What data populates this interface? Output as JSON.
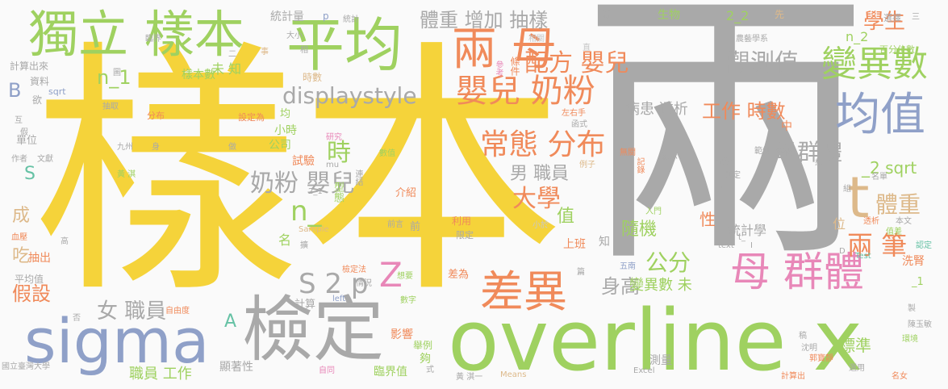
{
  "colors": {
    "yellow": "#f5d33a",
    "gray": "#a9a9a9",
    "green": "#9fd160",
    "blue": "#8fa0c8",
    "orange": "#f08a5a",
    "pink": "#e887b8",
    "tan": "#ddb98a",
    "teal": "#66c2a5",
    "lightgray": "#c7c7c7"
  },
  "words": [
    {
      "text": "樣本",
      "color": "yellow"
    },
    {
      "text": "兩",
      "color": "gray"
    },
    {
      "text": "overline x",
      "color": "green"
    },
    {
      "text": "平均",
      "color": "green"
    },
    {
      "text": "檢定",
      "color": "gray"
    },
    {
      "text": "sigma",
      "color": "blue"
    },
    {
      "text": "獨立 樣本",
      "color": "green"
    },
    {
      "text": "兩 母",
      "color": "orange"
    },
    {
      "text": "均值",
      "color": "blue"
    },
    {
      "text": "變異數",
      "color": "green"
    },
    {
      "text": "母 群體",
      "color": "pink"
    },
    {
      "text": "差異",
      "color": "orange"
    },
    {
      "text": "t",
      "color": "tan"
    },
    {
      "text": "嬰兒 奶粉",
      "color": "orange"
    },
    {
      "text": "配方 嬰兒",
      "color": "orange"
    },
    {
      "text": "觀測值",
      "color": "gray"
    },
    {
      "text": "學生",
      "color": "orange"
    },
    {
      "text": "體重 增加 抽樣",
      "color": "gray"
    },
    {
      "text": "displaystyle",
      "color": "gray"
    },
    {
      "text": "常態 分布",
      "color": "orange"
    },
    {
      "text": "奶粉 嬰兒",
      "color": "gray"
    },
    {
      "text": "母群體",
      "color": "gray"
    },
    {
      "text": "體重",
      "color": "tan"
    },
    {
      "text": "兩 筆",
      "color": "orange"
    },
    {
      "text": "工作 時數",
      "color": "orange"
    },
    {
      "text": "病患 透析",
      "color": "gray"
    },
    {
      "text": "大學",
      "color": "orange"
    },
    {
      "text": "男 職員",
      "color": "gray"
    },
    {
      "text": "n_1",
      "color": "green"
    },
    {
      "text": "n_",
      "color": "green"
    },
    {
      "text": "S 2 p",
      "color": "gray"
    },
    {
      "text": "Z",
      "color": "pink"
    },
    {
      "text": "身高",
      "color": "gray"
    },
    {
      "text": "公分",
      "color": "green"
    },
    {
      "text": "隨機",
      "color": "green"
    },
    {
      "text": "女 職員",
      "color": "gray"
    },
    {
      "text": "假設",
      "color": "orange"
    },
    {
      "text": "時",
      "color": "green"
    },
    {
      "text": "值",
      "color": "green"
    },
    {
      "text": "未 知",
      "color": "green"
    },
    {
      "text": "變異數 未",
      "color": "green"
    },
    {
      "text": "職員 工作",
      "color": "green"
    },
    {
      "text": "統計學",
      "color": "gray"
    },
    {
      "text": "標準",
      "color": "green"
    },
    {
      "text": "_2 sqrt",
      "color": "green"
    },
    {
      "text": "n_2",
      "color": "green"
    },
    {
      "text": "2_2",
      "color": "green"
    },
    {
      "text": "統計量",
      "color": "gray"
    },
    {
      "text": "生物",
      "color": "green"
    },
    {
      "text": "樣本數",
      "color": "green"
    },
    {
      "text": "上班",
      "color": "orange"
    },
    {
      "text": "A",
      "color": "teal"
    },
    {
      "text": "B",
      "color": "blue"
    },
    {
      "text": "S",
      "color": "teal"
    },
    {
      "text": "成",
      "color": "tan"
    },
    {
      "text": "吃",
      "color": "tan"
    },
    {
      "text": "位",
      "color": "tan"
    },
    {
      "text": "性",
      "color": "orange"
    },
    {
      "text": "知",
      "color": "gray"
    },
    {
      "text": "小時",
      "color": "green"
    },
    {
      "text": "公司",
      "color": "green"
    },
    {
      "text": "試驗",
      "color": "orange"
    },
    {
      "text": "型態",
      "color": "green"
    },
    {
      "text": "影響",
      "color": "orange"
    },
    {
      "text": "舉例",
      "color": "green"
    },
    {
      "text": "夠",
      "color": "green"
    },
    {
      "text": "臨界值",
      "color": "green"
    },
    {
      "text": "介紹",
      "color": "orange"
    },
    {
      "text": "差為",
      "color": "orange"
    },
    {
      "text": "抽出",
      "color": "orange"
    },
    {
      "text": "顯著性",
      "color": "gray"
    },
    {
      "text": "單位",
      "color": "gray"
    },
    {
      "text": "資料",
      "color": "gray"
    },
    {
      "text": "計算出來",
      "color": "gray"
    },
    {
      "text": "百分位數",
      "color": "green"
    },
    {
      "text": "名",
      "color": "green"
    },
    {
      "text": "均",
      "color": "green"
    },
    {
      "text": "中",
      "color": "orange"
    },
    {
      "text": "平均值",
      "color": "gray"
    },
    {
      "text": "計算",
      "color": "gray"
    },
    {
      "text": "測量",
      "color": "gray"
    },
    {
      "text": "洗腎",
      "color": "orange"
    },
    {
      "text": "_1",
      "color": "green"
    },
    {
      "text": "小於",
      "color": "lightgray"
    },
    {
      "text": "前",
      "color": "gray"
    },
    {
      "text": "時數",
      "color": "tan"
    },
    {
      "text": "說",
      "color": "gray"
    },
    {
      "text": "先",
      "color": "tan"
    },
    {
      "text": "選擇",
      "color": "gray"
    },
    {
      "text": "農藝學系",
      "color": "gray"
    },
    {
      "text": "利用",
      "color": "orange"
    },
    {
      "text": "限定",
      "color": "gray"
    },
    {
      "text": "Means",
      "color": "tan"
    },
    {
      "text": "Excel",
      "color": "gray"
    },
    {
      "text": "sqrt",
      "color": "blue"
    },
    {
      "text": "Sample",
      "color": "tan"
    },
    {
      "text": "Test",
      "color": "teal"
    },
    {
      "text": "left",
      "color": "blue"
    },
    {
      "text": "text",
      "color": "gray"
    },
    {
      "text": "欲",
      "color": "gray"
    },
    {
      "text": "大小",
      "color": "gray"
    },
    {
      "text": "相",
      "color": "gray"
    },
    {
      "text": "條件",
      "color": "orange"
    },
    {
      "text": "參考",
      "color": "pink"
    },
    {
      "text": "相關",
      "color": "lightgray"
    },
    {
      "text": "設定為",
      "color": "orange"
    },
    {
      "text": "研究",
      "color": "pink"
    },
    {
      "text": "數值",
      "color": "green"
    },
    {
      "text": "連結",
      "color": "gray"
    },
    {
      "text": "想要",
      "color": "green"
    },
    {
      "text": "情況",
      "color": "gray"
    },
    {
      "text": "數字",
      "color": "green"
    },
    {
      "text": "自由度",
      "color": "orange"
    },
    {
      "text": "國立臺灣大學",
      "color": "gray"
    },
    {
      "text": "陳玉敏",
      "color": "gray"
    },
    {
      "text": "郭寶靜",
      "color": "orange"
    },
    {
      "text": "沈明",
      "color": "gray"
    },
    {
      "text": "名女",
      "color": "orange"
    },
    {
      "text": "計算出",
      "color": "orange"
    },
    {
      "text": "本文",
      "color": "gray"
    },
    {
      "text": "值差",
      "color": "green"
    },
    {
      "text": "入門",
      "color": "green"
    },
    {
      "text": "五南",
      "color": "blue"
    },
    {
      "text": "例子",
      "color": "tan"
    },
    {
      "text": "記錄",
      "color": "orange"
    },
    {
      "text": "無關",
      "color": "orange"
    },
    {
      "text": "顯示",
      "color": "gray"
    },
    {
      "text": "範例",
      "color": "gray"
    },
    {
      "text": "變化",
      "color": "gray"
    },
    {
      "text": "判定",
      "color": "gray"
    },
    {
      "text": "配對",
      "color": "gray"
    },
    {
      "text": "名單",
      "color": "gray"
    },
    {
      "text": "透析",
      "color": "orange"
    },
    {
      "text": "環境",
      "color": "green"
    },
    {
      "text": "認定",
      "color": "teal"
    },
    {
      "text": "九州",
      "color": "gray"
    },
    {
      "text": "作者",
      "color": "gray"
    },
    {
      "text": "文獻",
      "color": "gray"
    },
    {
      "text": "黃 淇",
      "color": "green"
    },
    {
      "text": "黃 淇一",
      "color": "gray"
    },
    {
      "text": "血壓",
      "color": "orange"
    },
    {
      "text": "檢定法",
      "color": "orange"
    },
    {
      "text": "高",
      "color": "gray"
    },
    {
      "text": "抽取",
      "color": "gray"
    },
    {
      "text": "分布",
      "color": "orange"
    },
    {
      "text": "左右手",
      "color": "orange"
    },
    {
      "text": "臨界",
      "color": "gray"
    },
    {
      "text": "統計",
      "color": "gray"
    },
    {
      "text": "p",
      "color": "blue"
    },
    {
      "text": "事",
      "color": "tan"
    },
    {
      "text": "做",
      "color": "gray"
    },
    {
      "text": "否",
      "color": "gray"
    },
    {
      "text": "式",
      "color": "gray"
    },
    {
      "text": "稿",
      "color": "gray"
    },
    {
      "text": "製",
      "color": "gray"
    },
    {
      "text": "選用",
      "color": "gray"
    },
    {
      "text": "篇",
      "color": "gray"
    },
    {
      "text": "組",
      "color": "gray"
    },
    {
      "text": "想",
      "color": "gray"
    },
    {
      "text": "身",
      "color": "gray"
    },
    {
      "text": "圖",
      "color": "gray"
    },
    {
      "text": "互",
      "color": "gray"
    },
    {
      "text": "假",
      "color": "gray"
    },
    {
      "text": "擴",
      "color": "gray"
    },
    {
      "text": "自同",
      "color": "pink"
    },
    {
      "text": "前言",
      "color": "gray"
    },
    {
      "text": "直",
      "color": "lightgray"
    },
    {
      "text": "三",
      "color": "gray"
    },
    {
      "text": "n",
      "color": "gray"
    },
    {
      "text": "二",
      "color": "gray"
    },
    {
      "text": "mu",
      "color": "gray"
    },
    {
      "text": "t_",
      "color": "gray"
    },
    {
      "text": "I",
      "color": "gray"
    },
    {
      "text": "D",
      "color": "gray"
    },
    {
      "text": "2_1",
      "color": "gray"
    },
    {
      "text": "函式",
      "color": "gray"
    }
  ]
}
